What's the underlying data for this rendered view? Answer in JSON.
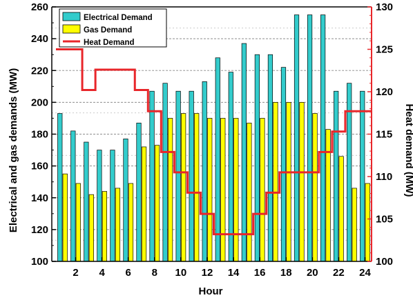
{
  "chart_data": {
    "type": "bar",
    "title": "",
    "xlabel": "Hour",
    "ylabel": "Electrical and gas demands (MW)",
    "y2label": "Heat demand (MW)",
    "ylim": [
      100,
      260
    ],
    "y2lim": [
      100,
      130
    ],
    "x": [
      1,
      2,
      3,
      4,
      5,
      6,
      7,
      8,
      9,
      10,
      11,
      12,
      13,
      14,
      15,
      16,
      17,
      18,
      19,
      20,
      21,
      22,
      23,
      24
    ],
    "x_tick_labels": [
      "2",
      "4",
      "6",
      "8",
      "10",
      "12",
      "14",
      "16",
      "18",
      "20",
      "22",
      "24"
    ],
    "y_tick_labels": [
      "100",
      "120",
      "140",
      "160",
      "180",
      "200",
      "220",
      "240",
      "260"
    ],
    "y2_tick_labels": [
      "100",
      "105",
      "110",
      "115",
      "120",
      "125",
      "130"
    ],
    "series": [
      {
        "name": "Electrical Demand",
        "type": "bar",
        "axis": "left",
        "color": "#33CCCC",
        "values": [
          193,
          182,
          175,
          170,
          170,
          177,
          187,
          207,
          212,
          207,
          207,
          213,
          228,
          219,
          237,
          230,
          230,
          222,
          255,
          255,
          255,
          207,
          212,
          207
        ]
      },
      {
        "name": "Gas Demand",
        "type": "bar",
        "axis": "left",
        "color": "#FFFF00",
        "values": [
          155,
          149,
          142,
          144,
          146,
          149,
          172,
          173,
          190,
          193,
          193,
          190,
          190,
          190,
          187,
          190,
          200,
          200,
          200,
          193,
          183,
          166,
          146,
          149
        ]
      },
      {
        "name": "Heat Demand",
        "type": "step",
        "axis": "right",
        "color": "#E8262A",
        "values": [
          125,
          125,
          120.2,
          122.6,
          122.6,
          122.6,
          120.2,
          117.7,
          112.9,
          110.5,
          108.1,
          105.6,
          103.2,
          103.2,
          103.2,
          105.6,
          108.1,
          110.5,
          110.5,
          110.5,
          112.9,
          115.3,
          117.7,
          117.7
        ]
      }
    ],
    "grid": "horizontal-dashed",
    "legend_position": "top-left"
  }
}
